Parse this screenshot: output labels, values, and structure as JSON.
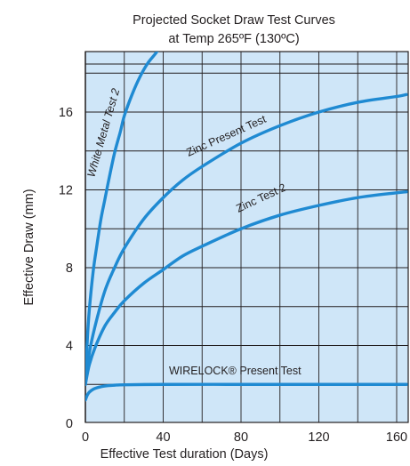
{
  "chart_data": {
    "type": "line",
    "title": "Projected Socket Draw Test Curves",
    "subtitle": "at Temp 265ºF (130ºC)",
    "xlabel": "Effective Test duration (Days)",
    "ylabel": "Effective Draw (mm)",
    "xlim": [
      0,
      165
    ],
    "ylim": [
      0,
      19
    ],
    "xticks": [
      0,
      40,
      80,
      120,
      160
    ],
    "yticks": [
      0,
      4,
      8,
      12,
      16
    ],
    "grid": true,
    "plot_background": "#cfe6f8",
    "line_color": "#1f8ad2",
    "grid_color": "#231f20",
    "series": [
      {
        "name": "White Metal Test 2",
        "x": [
          0,
          1,
          2,
          4,
          6,
          8,
          10,
          12,
          15,
          18,
          20,
          24,
          28,
          32,
          36,
          38
        ],
        "y": [
          2.0,
          4.3,
          5.8,
          7.8,
          9.2,
          10.5,
          11.5,
          12.5,
          13.9,
          15.0,
          15.8,
          16.9,
          17.8,
          18.5,
          19.0,
          19.3
        ]
      },
      {
        "name": "Zinc Present Test",
        "x": [
          0,
          2,
          5,
          10,
          15,
          20,
          30,
          40,
          50,
          60,
          80,
          100,
          120,
          140,
          160,
          165
        ],
        "y": [
          2.0,
          3.6,
          5.0,
          6.8,
          8.0,
          9.0,
          10.5,
          11.6,
          12.5,
          13.2,
          14.4,
          15.3,
          16.0,
          16.5,
          16.8,
          16.9
        ]
      },
      {
        "name": "Zinc Test 2",
        "x": [
          0,
          2,
          5,
          10,
          15,
          20,
          30,
          40,
          50,
          60,
          80,
          100,
          120,
          140,
          160,
          165
        ],
        "y": [
          2.0,
          3.0,
          3.9,
          5.0,
          5.7,
          6.3,
          7.2,
          7.9,
          8.6,
          9.1,
          10.0,
          10.7,
          11.2,
          11.6,
          11.85,
          11.9
        ]
      },
      {
        "name": "WIRELOCK® Present Test",
        "x": [
          0,
          1,
          2,
          4,
          6,
          8,
          10,
          15,
          20,
          40,
          80,
          120,
          160,
          165
        ],
        "y": [
          1.2,
          1.45,
          1.6,
          1.75,
          1.83,
          1.88,
          1.92,
          1.96,
          1.98,
          2.0,
          2.0,
          2.0,
          2.0,
          2.0
        ]
      }
    ]
  }
}
